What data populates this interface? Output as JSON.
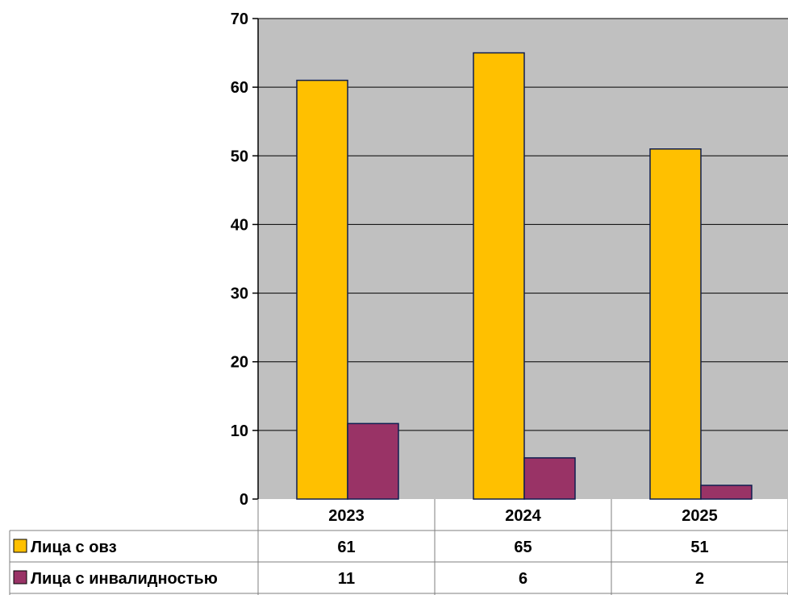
{
  "chart_data": {
    "type": "bar",
    "categories": [
      "2023",
      "2024",
      "2025"
    ],
    "series": [
      {
        "name": "Лица с овз",
        "values": [
          61,
          65,
          51
        ],
        "color": "#FFC000"
      },
      {
        "name": "Лица с инвалидностью",
        "values": [
          11,
          6,
          2
        ],
        "color": "#993366"
      }
    ],
    "ylim": [
      0,
      70
    ],
    "yticks": [
      "0",
      "10",
      "20",
      "30",
      "40",
      "50",
      "60",
      "70"
    ],
    "grid": true,
    "legend": "data-table",
    "plot_background": "#C0C0C0",
    "bar_outline": "#0F1E50",
    "title": "",
    "xlabel": "",
    "ylabel": ""
  }
}
